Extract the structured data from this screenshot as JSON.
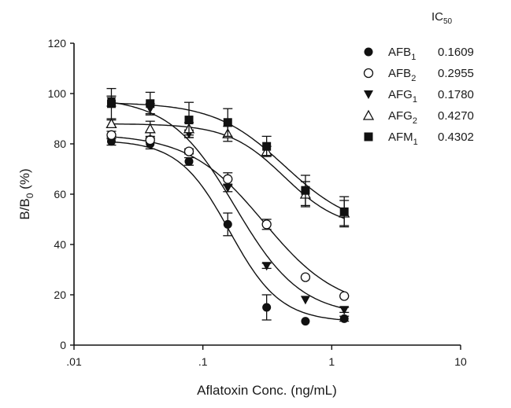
{
  "chart_data": {
    "type": "scatter",
    "xscale": "log",
    "xlabel": "Aflatoxin Conc. (ng/mL)",
    "ylabel_main": "B/B",
    "ylabel_sub": "0",
    "ylabel_tail": " (%)",
    "xlim": [
      0.01,
      10
    ],
    "ylim": [
      0,
      120
    ],
    "xticks": [
      {
        "value": 0.01,
        "label": ".01"
      },
      {
        "value": 0.1,
        "label": ".1"
      },
      {
        "value": 1,
        "label": "1"
      },
      {
        "value": 10,
        "label": "10"
      }
    ],
    "yticks": [
      0,
      20,
      40,
      60,
      80,
      100,
      120
    ],
    "legend_header_main": "IC",
    "legend_header_sub": "50",
    "legend_position": "top-right",
    "x": [
      0.0195,
      0.039,
      0.078,
      0.156,
      0.3125,
      0.625,
      1.25
    ],
    "series": [
      {
        "name": "AFB",
        "sub": "1",
        "ic50": "0.1609",
        "marker": "filled-circle",
        "values": [
          81,
          80,
          73,
          48,
          15,
          9.5,
          10.5
        ],
        "errors": [
          1.5,
          2,
          1.5,
          4.5,
          5,
          0,
          1
        ]
      },
      {
        "name": "AFB",
        "sub": "2",
        "ic50": "0.2955",
        "marker": "open-circle",
        "values": [
          83.5,
          81.5,
          77,
          66,
          48,
          27,
          19.5
        ],
        "errors": [
          1.5,
          1,
          1,
          2.5,
          2,
          0,
          0
        ]
      },
      {
        "name": "AFG",
        "sub": "1",
        "ic50": "0.1780",
        "marker": "filled-triangle-down",
        "values": [
          97,
          94,
          84,
          62.5,
          31.5,
          18,
          14
        ],
        "errors": [
          2,
          2,
          1.5,
          1.5,
          1,
          0,
          1
        ]
      },
      {
        "name": "AFG",
        "sub": "2",
        "ic50": "0.4270",
        "marker": "open-triangle-up",
        "values": [
          88,
          86,
          86,
          84,
          77,
          60,
          52.5
        ],
        "errors": [
          1.5,
          3,
          2.5,
          3,
          2,
          5,
          5
        ]
      },
      {
        "name": "AFM",
        "sub": "1",
        "ic50": "0.4302",
        "marker": "filled-square",
        "values": [
          96,
          96,
          89.5,
          88.5,
          79,
          61.5,
          53
        ],
        "errors": [
          6,
          4.5,
          7,
          5.5,
          4,
          6,
          6
        ]
      }
    ],
    "curves": [
      {
        "top": 81.5,
        "bottom": 9.2,
        "ic50": 0.1609,
        "slope": 2.2
      },
      {
        "top": 84,
        "bottom": 14,
        "ic50": 0.2955,
        "slope": 1.5
      },
      {
        "top": 98.5,
        "bottom": 11.5,
        "ic50": 0.178,
        "slope": 1.7
      },
      {
        "top": 88,
        "bottom": 46,
        "ic50": 0.427,
        "slope": 2.0
      },
      {
        "top": 96.5,
        "bottom": 46,
        "ic50": 0.4302,
        "slope": 1.6
      }
    ]
  }
}
